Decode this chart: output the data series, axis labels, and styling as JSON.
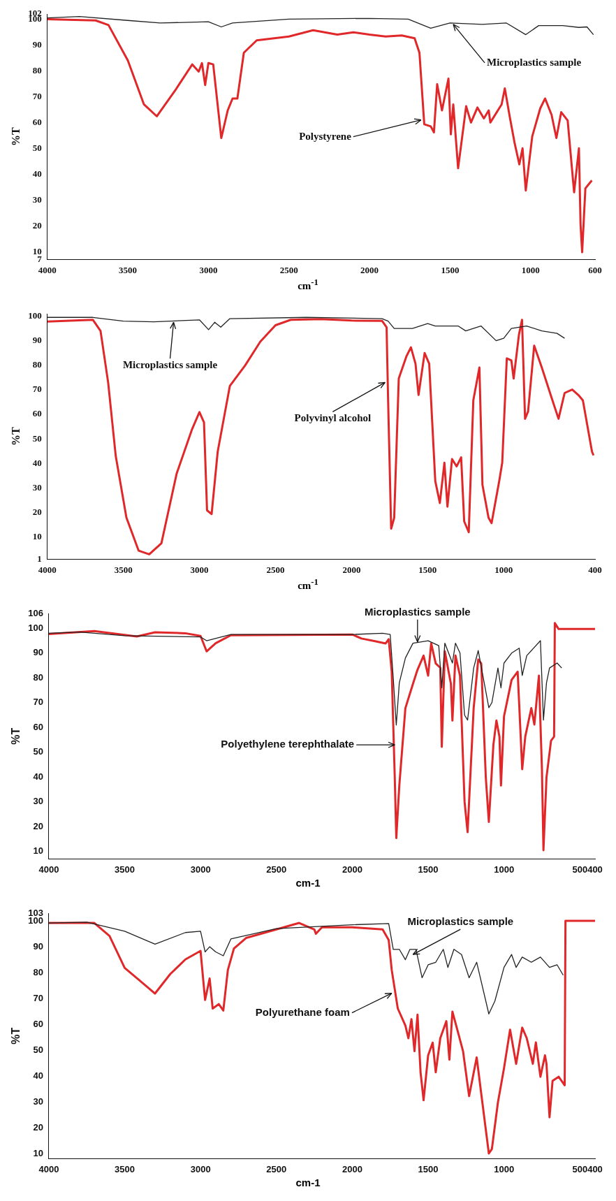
{
  "chart_data": [
    {
      "type": "line",
      "ylabel": "%T",
      "xlabel": "cm$^{-1}$",
      "xlim": [
        4000,
        600
      ],
      "ylim": [
        7,
        102
      ],
      "xticks": [
        4000,
        3500,
        3000,
        2500,
        2000,
        1500,
        1000,
        600
      ],
      "yticks": [
        7,
        10,
        20,
        30,
        40,
        50,
        60,
        70,
        80,
        90,
        100,
        102
      ],
      "grid": false,
      "legend": false,
      "marker": "none",
      "line_style": "solid",
      "series": [
        {
          "color": "#222222",
          "x": [
            4000,
            3800,
            3500,
            3300,
            3000,
            2920,
            2850,
            2500,
            2000,
            1760,
            1620,
            1500,
            1300,
            1150,
            1030,
            950,
            800,
            700,
            650,
            610
          ],
          "values": [
            100.5,
            101,
            99.5,
            98.5,
            99,
            97,
            98.5,
            100,
            100.3,
            100,
            96.5,
            98.5,
            98,
            98.5,
            94,
            97.5,
            97.5,
            96.8,
            97,
            94
          ]
        },
        {
          "color": "#e0282a",
          "x": [
            4000,
            3700,
            3620,
            3500,
            3400,
            3320,
            3200,
            3100,
            3060,
            3040,
            3020,
            3000,
            2970,
            2920,
            2880,
            2850,
            2820,
            2780,
            2700,
            2500,
            2350,
            2200,
            2100,
            2000,
            1900,
            1800,
            1720,
            1690,
            1660,
            1620,
            1600,
            1580,
            1550,
            1510,
            1495,
            1480,
            1450,
            1400,
            1370,
            1330,
            1290,
            1260,
            1250,
            1180,
            1160,
            1130,
            1100,
            1070,
            1050,
            1030,
            990,
            940,
            910,
            870,
            840,
            810,
            770,
            730,
            700,
            690,
            680,
            660,
            620
          ],
          "values": [
            100,
            99.5,
            97.7,
            84,
            67,
            62.4,
            73,
            82.5,
            79.7,
            83,
            74.5,
            83,
            82.5,
            54,
            64.7,
            69.3,
            69.3,
            87,
            91.8,
            93.3,
            95.7,
            94,
            94.9,
            94,
            93.3,
            93.7,
            92.6,
            87,
            59.3,
            58.5,
            56.2,
            74.8,
            64.7,
            77,
            55.4,
            67,
            42.3,
            66.3,
            60,
            65.8,
            61.6,
            64.7,
            60,
            67,
            73.2,
            62.4,
            52.3,
            43.8,
            50,
            33.7,
            54.6,
            65.5,
            69.3,
            63,
            54,
            64,
            60.8,
            33,
            50,
            20.6,
            9.8,
            34.5,
            37.6
          ]
        }
      ],
      "annotations": [
        {
          "text": "Microplastics sample",
          "x": 1480,
          "y": 98
        },
        {
          "text": "Polystyrene",
          "x": 1680,
          "y": 61
        }
      ]
    },
    {
      "type": "line",
      "ylabel": "%T",
      "xlabel": "cm$^{-1}$",
      "xlim": [
        4000,
        400
      ],
      "ylim": [
        1,
        101
      ],
      "xticks": [
        4000,
        3500,
        3000,
        2500,
        2000,
        1500,
        1000,
        400
      ],
      "yticks": [
        1,
        10,
        20,
        30,
        40,
        50,
        60,
        70,
        80,
        90,
        100
      ],
      "grid": false,
      "legend": false,
      "marker": "none",
      "line_style": "solid",
      "series": [
        {
          "color": "#222222",
          "x": [
            4000,
            3700,
            3500,
            3300,
            3000,
            2940,
            2900,
            2860,
            2800,
            2300,
            1800,
            1760,
            1720,
            1600,
            1500,
            1450,
            1300,
            1250,
            1150,
            1050,
            1000,
            950,
            850,
            750,
            650,
            600
          ],
          "values": [
            99.5,
            99.5,
            98,
            97.7,
            98.5,
            94.5,
            97.5,
            95.5,
            99,
            99.5,
            99,
            98,
            95,
            95,
            97,
            96,
            96,
            94,
            96,
            90,
            91,
            95,
            96,
            94,
            93,
            91
          ]
        },
        {
          "color": "#e0282a",
          "x": [
            4000,
            3700,
            3650,
            3600,
            3550,
            3480,
            3400,
            3330,
            3250,
            3150,
            3050,
            3000,
            2970,
            2950,
            2920,
            2880,
            2800,
            2700,
            2600,
            2500,
            2400,
            2200,
            2000,
            1800,
            1770,
            1760,
            1740,
            1720,
            1690,
            1640,
            1610,
            1580,
            1560,
            1520,
            1490,
            1450,
            1420,
            1390,
            1370,
            1340,
            1310,
            1280,
            1260,
            1230,
            1200,
            1160,
            1140,
            1100,
            1080,
            1030,
            1010,
            980,
            950,
            935,
            900,
            880,
            860,
            840,
            800,
            750,
            680,
            640,
            600,
            550,
            510,
            480,
            420,
            410
          ],
          "values": [
            97.8,
            98.5,
            94,
            73,
            43,
            18,
            4.5,
            3,
            7.5,
            35.8,
            53.7,
            60.9,
            56.7,
            20.9,
            19.4,
            44.8,
            71.6,
            79.9,
            89.6,
            96.3,
            98.5,
            98.8,
            98.2,
            98.1,
            95.5,
            65.7,
            13.4,
            17.9,
            74.6,
            83.6,
            87.3,
            80.6,
            67.9,
            85,
            80.6,
            32.8,
            23.9,
            40.3,
            22.4,
            41.8,
            38.8,
            42.5,
            16.4,
            12,
            65.7,
            79.1,
            31.3,
            17.9,
            15.7,
            32.8,
            40.3,
            82.8,
            82,
            74.6,
            92.5,
            98.5,
            58.2,
            61.2,
            88,
            79.1,
            65.7,
            58.2,
            68.7,
            70.1,
            67.9,
            65.7,
            44.8,
            43.3
          ]
        }
      ],
      "annotations": [
        {
          "text": "Microplastics sample",
          "x": 3170,
          "y": 97.5
        },
        {
          "text": "Polyvinyl alcohol",
          "x": 1780,
          "y": 73
        }
      ]
    },
    {
      "type": "line",
      "ylabel": "%T",
      "xlabel": "cm-1",
      "xlim": [
        4000,
        400
      ],
      "ylim": [
        7,
        106
      ],
      "xticks": [
        4000,
        3500,
        3000,
        2500,
        2000,
        1500,
        1000,
        500,
        400
      ],
      "yticks": [
        10,
        20,
        30,
        40,
        50,
        60,
        70,
        80,
        90,
        100,
        106
      ],
      "grid": false,
      "legend": false,
      "marker": "none",
      "line_style": "solid",
      "series": [
        {
          "color": "#222222",
          "x": [
            4000,
            3800,
            3500,
            3000,
            2960,
            2800,
            2000,
            1800,
            1750,
            1730,
            1710,
            1690,
            1650,
            1600,
            1500,
            1430,
            1410,
            1390,
            1340,
            1320,
            1290,
            1260,
            1240,
            1200,
            1170,
            1100,
            1080,
            1040,
            1020,
            1000,
            950,
            900,
            880,
            850,
            760,
            740,
            720,
            700,
            650,
            620
          ],
          "values": [
            98,
            98.5,
            97,
            96.5,
            95,
            97.5,
            97.5,
            98,
            97.5,
            80,
            61,
            78,
            88,
            94,
            95,
            93,
            76,
            94,
            86,
            94,
            90,
            65,
            63,
            84,
            91,
            68,
            70,
            84,
            76,
            86,
            90,
            92,
            81,
            89,
            95,
            63,
            78,
            84,
            86,
            84
          ]
        },
        {
          "color": "#e0282a",
          "x": [
            4000,
            3700,
            3420,
            3300,
            3100,
            3000,
            2960,
            2900,
            2850,
            2800,
            2000,
            1940,
            1850,
            1780,
            1760,
            1740,
            1720,
            1710,
            1690,
            1650,
            1600,
            1570,
            1530,
            1500,
            1480,
            1450,
            1420,
            1410,
            1390,
            1350,
            1340,
            1320,
            1290,
            1260,
            1240,
            1200,
            1170,
            1150,
            1120,
            1100,
            1070,
            1050,
            1030,
            1020,
            1000,
            950,
            910,
            880,
            860,
            820,
            800,
            770,
            750,
            740,
            720,
            690,
            670,
            665,
            640,
            400
          ],
          "values": [
            97.7,
            98.9,
            96.7,
            98.4,
            98,
            96.9,
            90.7,
            94,
            95.6,
            97.2,
            97.5,
            95.9,
            94.8,
            93.9,
            95.6,
            82.5,
            39.9,
            15.4,
            36.6,
            67.8,
            77.6,
            83.3,
            89,
            80.9,
            93.9,
            85.8,
            84.1,
            52.2,
            90.7,
            77.6,
            62.8,
            89,
            80.9,
            30.1,
            17.8,
            67.8,
            87.4,
            85.8,
            39.9,
            21.9,
            53,
            62.8,
            56.3,
            36.6,
            64.5,
            79.2,
            82.5,
            43.2,
            56.3,
            67.8,
            61.2,
            80.9,
            43.2,
            10.5,
            39.9,
            54.7,
            56.3,
            102.1,
            99.7,
            99.7
          ]
        }
      ],
      "annotations": [
        {
          "text": "Microplastics sample",
          "x": 1570,
          "y": 94.5
        },
        {
          "text": "Polyethylene terephthalate",
          "x": 1720,
          "y": 53
        }
      ]
    },
    {
      "type": "line",
      "ylabel": "%T",
      "xlabel": "cm-1",
      "xlim": [
        4000,
        400
      ],
      "ylim": [
        8,
        103
      ],
      "xticks": [
        4000,
        3500,
        3000,
        2500,
        2000,
        1500,
        1000,
        500,
        400
      ],
      "yticks": [
        10,
        20,
        30,
        40,
        50,
        60,
        70,
        80,
        90,
        100,
        103
      ],
      "grid": false,
      "legend": false,
      "marker": "none",
      "line_style": "solid",
      "series": [
        {
          "color": "#222222",
          "x": [
            4000,
            3750,
            3500,
            3300,
            3100,
            3000,
            2970,
            2940,
            2900,
            2850,
            2800,
            2500,
            2000,
            1760,
            1730,
            1690,
            1650,
            1620,
            1580,
            1540,
            1500,
            1450,
            1400,
            1370,
            1330,
            1280,
            1230,
            1180,
            1100,
            1060,
            1000,
            950,
            920,
            880,
            820,
            760,
            700,
            650,
            610
          ],
          "values": [
            99.2,
            99.5,
            96,
            91,
            95.5,
            96,
            88,
            90,
            88,
            86.5,
            93,
            97,
            98.5,
            99,
            89,
            89,
            85,
            89,
            89,
            78,
            83,
            84,
            89,
            82,
            89,
            87,
            78,
            84,
            64,
            69,
            82,
            87,
            82,
            86,
            84,
            86,
            82,
            83,
            79
          ]
        },
        {
          "color": "#e0282a",
          "x": [
            4000,
            3700,
            3600,
            3500,
            3400,
            3300,
            3200,
            3100,
            3000,
            2970,
            2940,
            2920,
            2880,
            2850,
            2820,
            2780,
            2700,
            2500,
            2350,
            2250,
            2240,
            2200,
            2000,
            1800,
            1760,
            1740,
            1700,
            1650,
            1630,
            1610,
            1590,
            1570,
            1550,
            1530,
            1500,
            1470,
            1450,
            1420,
            1380,
            1360,
            1340,
            1300,
            1270,
            1230,
            1180,
            1150,
            1100,
            1080,
            1040,
            1000,
            960,
            920,
            880,
            850,
            810,
            790,
            760,
            730,
            720,
            700,
            680,
            640,
            600,
            595,
            400
          ],
          "values": [
            99.2,
            99.2,
            94.2,
            81.8,
            76.9,
            71.9,
            79.4,
            85.1,
            88.4,
            69.4,
            77.7,
            66.1,
            67.8,
            65.3,
            81,
            89.3,
            93.4,
            96.7,
            99.2,
            96.7,
            95,
            97.5,
            97.5,
            96.7,
            92.6,
            81,
            66.1,
            59.5,
            54.6,
            62,
            49.6,
            63.7,
            41.4,
            30.6,
            48,
            52.9,
            41.4,
            54.6,
            61.2,
            46.3,
            64.9,
            56.2,
            49.6,
            32.2,
            47.2,
            33.1,
            10,
            11.7,
            29.8,
            43,
            57.9,
            44.7,
            58.7,
            54.6,
            44.7,
            53,
            39.7,
            48,
            44.7,
            24,
            38.1,
            39.7,
            36.4,
            100,
            100
          ]
        }
      ],
      "annotations": [
        {
          "text": "Microplastics sample",
          "x": 1600,
          "y": 87
        },
        {
          "text": "Polyurethane foam",
          "x": 1740,
          "y": 72
        }
      ]
    }
  ]
}
